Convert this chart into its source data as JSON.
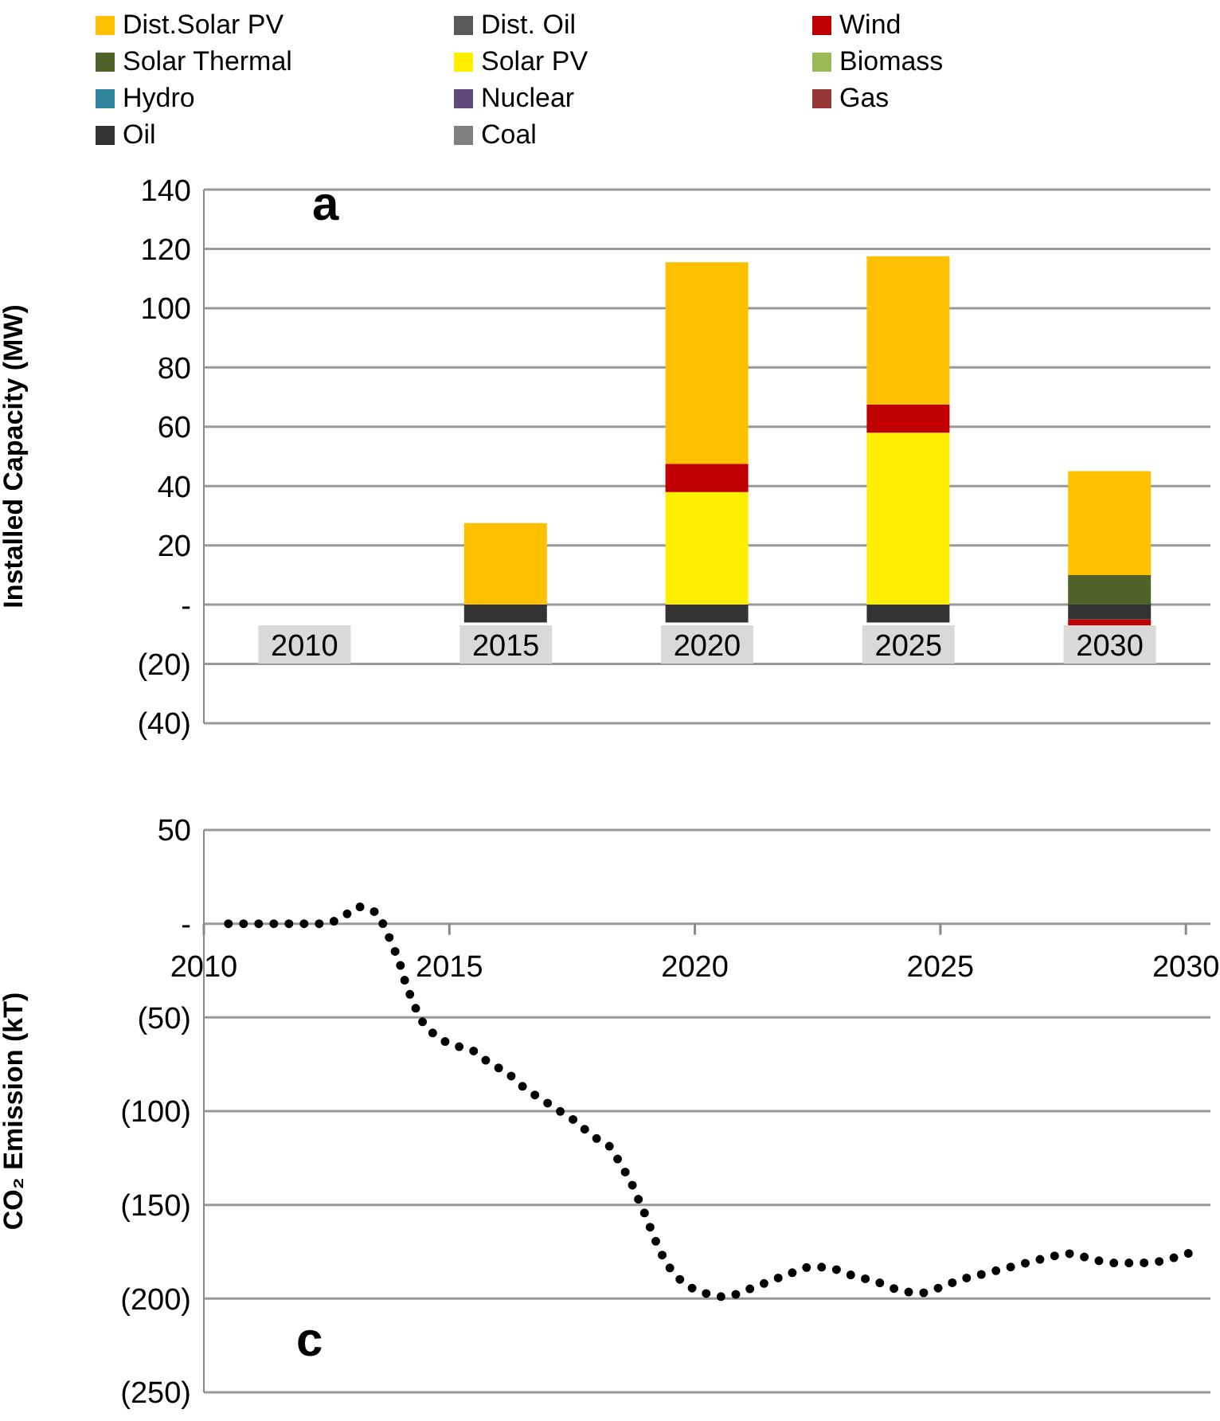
{
  "chart_data": [
    {
      "type": "bar",
      "stacked": true,
      "categories": [
        "2010",
        "2015",
        "2020",
        "2025",
        "2030"
      ],
      "ylabel": "Installed Capacity (MW)",
      "ylim": [
        -40,
        140
      ],
      "yticks": [
        {
          "value": -40,
          "label": "(40)"
        },
        {
          "value": -20,
          "label": "(20)"
        },
        {
          "value": 0,
          "label": "-"
        },
        20,
        40,
        60,
        80,
        100,
        120,
        140
      ],
      "grid": "y",
      "legend": "top",
      "annotations": [
        "a"
      ],
      "series": [
        {
          "name": "Coal",
          "color": "#808080",
          "values": [
            0,
            0,
            0,
            0,
            0
          ]
        },
        {
          "name": "Oil",
          "color": "#333333",
          "values": [
            0,
            -6,
            -6,
            -6,
            -5
          ]
        },
        {
          "name": "Gas",
          "color": "#953735",
          "values": [
            0,
            0,
            0,
            0,
            0
          ]
        },
        {
          "name": "Nuclear",
          "color": "#604a7b",
          "values": [
            0,
            0,
            0,
            0,
            0
          ]
        },
        {
          "name": "Hydro",
          "color": "#31859c",
          "values": [
            0,
            0,
            0,
            0,
            0
          ]
        },
        {
          "name": "Biomass",
          "color": "#9bbb59",
          "values": [
            0,
            0,
            0,
            0,
            0
          ]
        },
        {
          "name": "Solar PV",
          "color": "#ffee00",
          "values": [
            0,
            0,
            38,
            58,
            0
          ]
        },
        {
          "name": "Solar Thermal",
          "color": "#4f6228",
          "values": [
            0,
            0,
            0,
            0,
            10
          ]
        },
        {
          "name": "Wind",
          "color": "#c00000",
          "values": [
            0,
            0,
            9.5,
            9.5,
            -2.5
          ]
        },
        {
          "name": "Dist. Oil",
          "color": "#595959",
          "values": [
            0,
            0,
            0,
            0,
            0
          ]
        },
        {
          "name": "Dist.Solar PV",
          "color": "#ffc000",
          "values": [
            0,
            27.5,
            68,
            50,
            35
          ]
        }
      ]
    },
    {
      "type": "line",
      "ylabel": "CO₂ Emission (kT)",
      "xlim": [
        2010,
        2030.5
      ],
      "xticks": [
        2010,
        2015,
        2020,
        2025,
        2030
      ],
      "ylim": [
        -250,
        50
      ],
      "yticks": [
        {
          "value": -250,
          "label": "(250)"
        },
        {
          "value": -200,
          "label": "(200)"
        },
        {
          "value": -150,
          "label": "(150)"
        },
        {
          "value": -100,
          "label": "(100)"
        },
        {
          "value": -50,
          "label": "(50)"
        },
        {
          "value": 0,
          "label": "-"
        },
        50
      ],
      "grid": "y",
      "line_style": "dotted",
      "color": "#000000",
      "annotations": [
        "c"
      ],
      "x": [
        2010.5,
        2011,
        2011.4,
        2011.9,
        2012.4,
        2012.8,
        2013.15,
        2013.5,
        2013.7,
        2013.85,
        2014,
        2014.1,
        2014.25,
        2014.4,
        2014.65,
        2015,
        2015.5,
        2015.8,
        2016.2,
        2016.5,
        2016.9,
        2017.25,
        2017.6,
        2017.9,
        2018.3,
        2018.5,
        2018.7,
        2018.85,
        2019,
        2019.15,
        2019.3,
        2019.5,
        2019.8,
        2020.2,
        2020.6,
        2021.1,
        2021.5,
        2021.9,
        2022.4,
        2022.8,
        2023.25,
        2023.7,
        2024.1,
        2024.6,
        2025,
        2025.4,
        2025.85,
        2026.3,
        2026.75,
        2027.2,
        2027.6,
        2028.1,
        2028.5,
        2029,
        2029.5,
        2029.9,
        2030.3
      ],
      "values": [
        0,
        0,
        0,
        0,
        0,
        3,
        9,
        6,
        -3,
        -12,
        -22,
        -31,
        -41,
        -50,
        -58,
        -64,
        -68,
        -74,
        -80,
        -87,
        -94,
        -100,
        -106,
        -113,
        -120,
        -129,
        -138,
        -147,
        -156,
        -166,
        -175,
        -184,
        -192,
        -197,
        -199,
        -195,
        -191,
        -187,
        -183,
        -184,
        -188,
        -191,
        -195,
        -197,
        -194,
        -190,
        -187,
        -184,
        -181,
        -178,
        -176,
        -179,
        -181,
        -181,
        -180,
        -177,
        -174
      ]
    }
  ]
}
